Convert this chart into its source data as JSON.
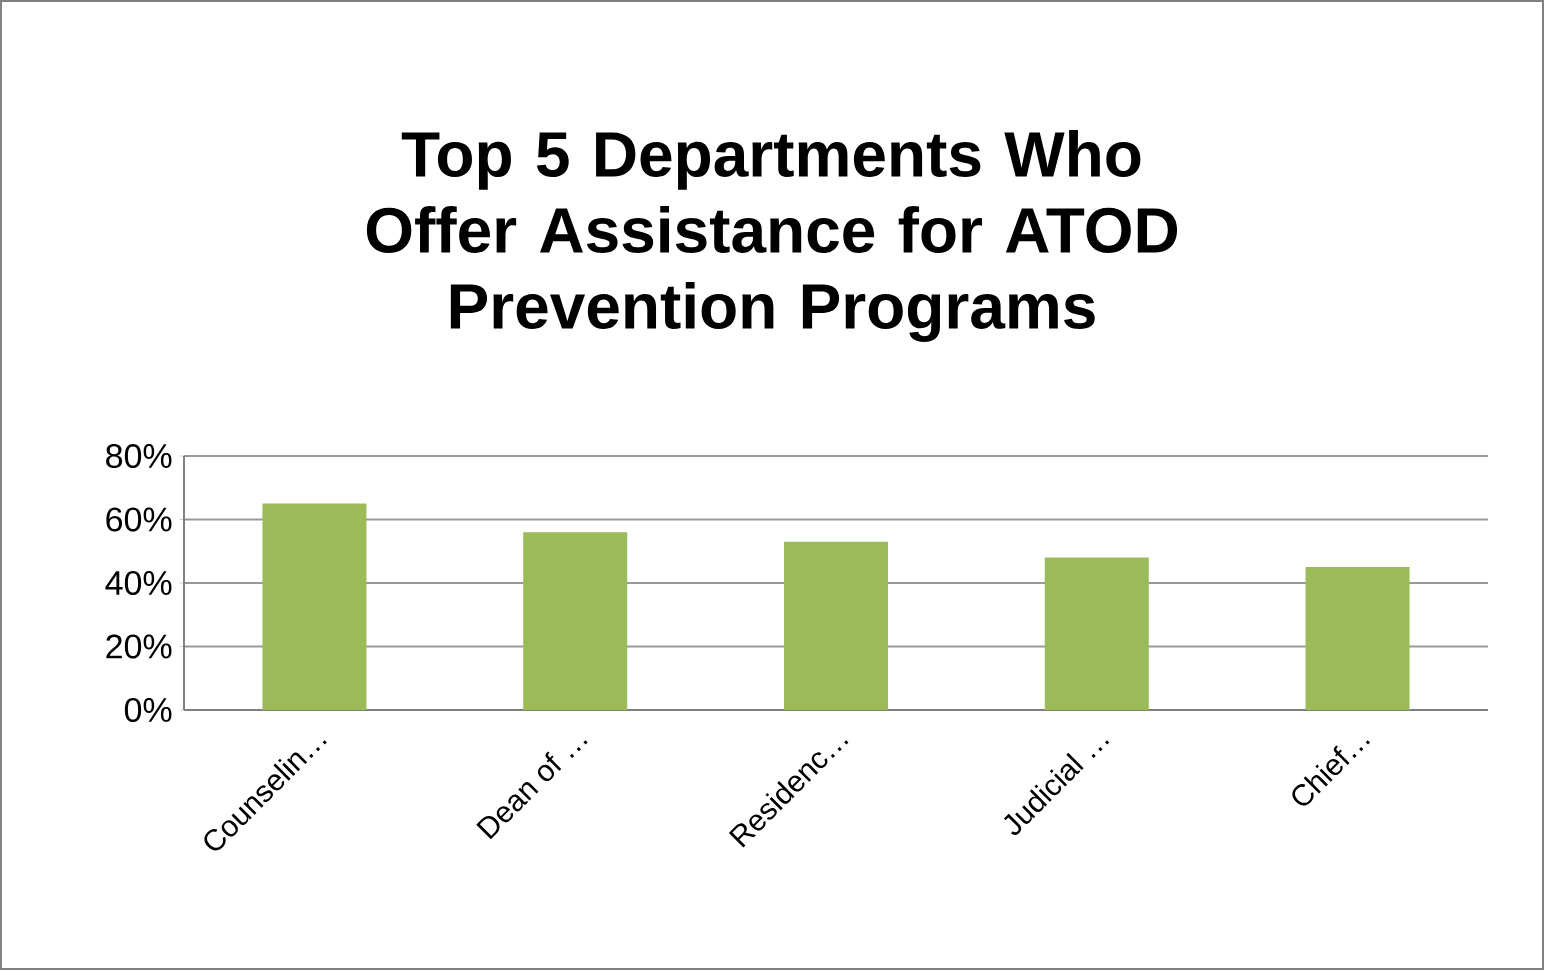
{
  "chart_data": {
    "type": "bar",
    "title": "Top 5 Departments Who Offer Assistance for ATOD Prevention Programs",
    "categories": [
      "Counselin…",
      "Dean of …",
      "Residenc…",
      "Judicial …",
      "Chief…"
    ],
    "values": [
      65,
      56,
      53,
      48,
      45
    ],
    "color": "#9bbb59",
    "ylim": [
      0,
      80
    ],
    "yticks": [
      {
        "value": 0,
        "label": "0%"
      },
      {
        "value": 20,
        "label": "20%"
      },
      {
        "value": 40,
        "label": "40%"
      },
      {
        "value": 60,
        "label": "60%"
      },
      {
        "value": 80,
        "label": "80%"
      }
    ],
    "grid": "y"
  }
}
